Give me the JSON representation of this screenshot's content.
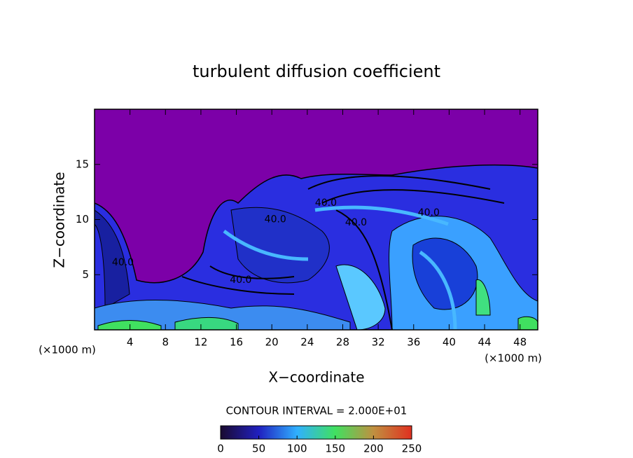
{
  "chart_data": {
    "type": "contour",
    "title": "turbulent diffusion coefficient",
    "x_label": "X−coordinate",
    "y_label": "Z−coordinate",
    "x_unit": "(×1000 m)",
    "y_unit": "(×1000 m)",
    "xlim": [
      0,
      50
    ],
    "ylim": [
      0,
      20
    ],
    "xticks": [
      4,
      8,
      12,
      16,
      20,
      24,
      28,
      32,
      36,
      40,
      44,
      48
    ],
    "yticks": [
      5,
      10,
      15
    ],
    "contour_interval": "CONTOUR INTERVAL = 2.000E+01",
    "contour_labels": [
      {
        "text": "40.0",
        "x": 3.2,
        "y": 6.1
      },
      {
        "text": "40.0",
        "x": 20.4,
        "y": 10.0
      },
      {
        "text": "40.0",
        "x": 26.1,
        "y": 11.5
      },
      {
        "text": "40.0",
        "x": 29.5,
        "y": 9.7
      },
      {
        "text": "40.0",
        "x": 37.7,
        "y": 10.6
      },
      {
        "text": "40.0",
        "x": 16.5,
        "y": 4.5
      }
    ],
    "colorbar": {
      "lim": [
        0,
        250
      ],
      "ticks": [
        0,
        50,
        100,
        150,
        200,
        250
      ],
      "colors": [
        "#1a0a30",
        "#2020c0",
        "#30b0ff",
        "#40e060",
        "#c09040",
        "#e03020"
      ]
    }
  }
}
